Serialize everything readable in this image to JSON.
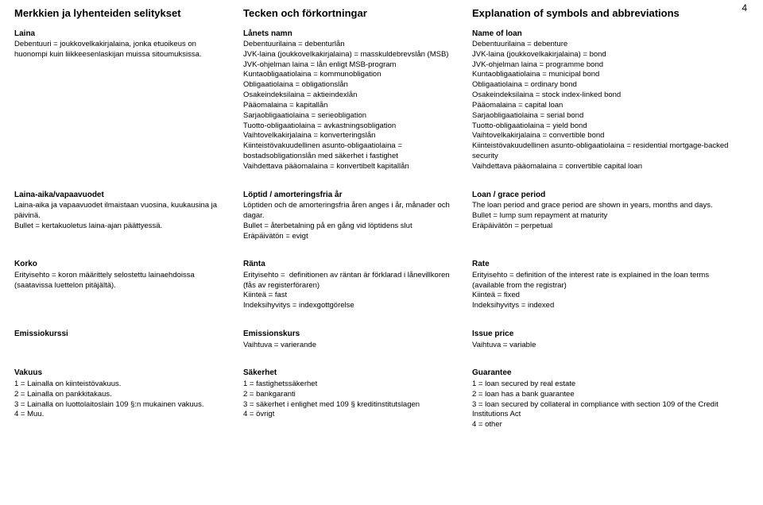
{
  "pageNumber": "4",
  "headers": {
    "fi": "Merkkien ja lyhenteiden selitykset",
    "sv": "Tecken och förkortningar",
    "en": "Explanation of symbols and abbreviations"
  },
  "sections": [
    {
      "cols": [
        {
          "title": "Laina",
          "lines": [
            "Debentuuri = joukkovelkakirjalaina, jonka etuoikeus on huonompi kuin liikkeesenlaskijan muissa sitoumuksissa."
          ]
        },
        {
          "title": "Lånets namn",
          "lines": [
            "Debentuurilaina = debenturlån",
            "JVK-laina (joukkovelkakirjalaina) = masskuldebrevslån (MSB)",
            "JVK-ohjelman laina = lån enligt MSB-program",
            "Kuntaobligaatiolaina = kommunobligation",
            "Obligaatiolaina = obligationslån",
            "Osakeindeksilaina = aktieindexlån",
            "Pääomalaina = kapitallån",
            "Sarjaobligaatiolaina = serieobligation",
            "Tuotto-obligaatiolaina = avkastningsobligation",
            "Vaihtovelkakirjalaina = konverteringslån",
            "Kiinteistövakuudellinen asunto-obligaatiolaina = bostadsobligationslån med säkerhet i fastighet",
            "Vaihdettava pääomalaina = konvertibelt kapitallån"
          ]
        },
        {
          "title": "Name of loan",
          "lines": [
            "Debentuurilaina = debenture",
            "JVK-laina (joukkovelkakirjalaina) = bond",
            "JVK-ohjelman laina = programme bond",
            "Kuntaobligaatiolaina = municipal bond",
            "Obligaatiolaina = ordinary bond",
            "Osakeindeksilaina = stock index-linked bond",
            "Pääomalaina = capital loan",
            "Sarjaobligaatiolaina = serial bond",
            "Tuotto-obligaatiolaina = yield bond",
            "Vaihtovelkakirjalaina = convertible bond",
            "Kiinteistövakuudellinen asunto-obligaatiolaina = residential mortgage-backed security",
            "Vaihdettava pääomalaina = convertible capital loan"
          ]
        }
      ]
    },
    {
      "cols": [
        {
          "title": "Laina-aika/vapaavuodet",
          "lines": [
            "Laina-aika ja vapaavuodet ilmaistaan vuosina, kuukausina ja päivinä.",
            "Bullet = kertakuoletus laina-ajan päättyessä."
          ]
        },
        {
          "title": "Löptid / amorteringsfria år",
          "lines": [
            "Löptiden och de amorteringsfria åren anges i år, månader och dagar.",
            "Bullet = återbetalning på en gång vid löptidens slut",
            "Eräpäivätön = evigt"
          ]
        },
        {
          "title": "Loan / grace period",
          "lines": [
            "The loan period and grace period are shown in years, months and days.",
            "Bullet = lump sum repayment at maturity",
            "Eräpäivätön = perpetual"
          ]
        }
      ]
    },
    {
      "cols": [
        {
          "title": "Korko",
          "lines": [
            "Erityisehto = koron määrittely selostettu lainaehdoissa (saatavissa luettelon pitäjältä)."
          ]
        },
        {
          "title": "Ränta",
          "lines": [
            "Erityisehto =  definitionen av räntan är förklarad i lånevillkoren (fås av registerföraren)",
            "Kiinteä = fast",
            "Indeksihyvitys = indexgottgörelse"
          ]
        },
        {
          "title": "Rate",
          "lines": [
            "Erityisehto = definition of the interest rate is explained in the loan terms (available from the registrar)",
            "Kiinteä = fixed",
            "Indeksihyvitys = indexed"
          ]
        }
      ]
    },
    {
      "cols": [
        {
          "title": "Emissiokurssi",
          "lines": []
        },
        {
          "title": "Emissionskurs",
          "lines": [
            "Vaihtuva = varierande"
          ]
        },
        {
          "title": "Issue price",
          "lines": [
            "Vaihtuva = variable"
          ]
        }
      ]
    },
    {
      "cols": [
        {
          "title": "Vakuus",
          "lines": [
            "1 = Lainalla on kiinteistövakuus.",
            "2 = Lainalla on pankkitakaus.",
            "3 = Lainalla on luottolaitoslain 109 §:n mukainen vakuus.",
            "4 = Muu."
          ]
        },
        {
          "title": "Säkerhet",
          "lines": [
            "1 = fastighetssäkerhet",
            "2 = bankgaranti",
            "3 = säkerhet i enlighet med 109 § kreditinstitutslagen",
            "4 = övrigt"
          ]
        },
        {
          "title": "Guarantee",
          "lines": [
            "1 = loan secured by real estate",
            "2 = loan has a bank guarantee",
            "3 = loan secured by collateral in compliance with section 109 of the Credit Institutions Act",
            "4 = other"
          ]
        }
      ]
    }
  ]
}
